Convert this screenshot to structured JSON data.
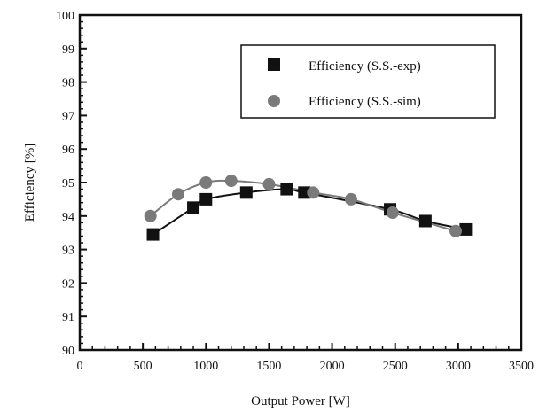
{
  "chart_data": {
    "type": "line",
    "title": "",
    "xlabel": "Output Power [W]",
    "ylabel": "Efficiency [%]",
    "xlim": [
      0,
      3500
    ],
    "ylim": [
      90,
      100
    ],
    "xticks": [
      "0",
      "500",
      "1000",
      "1500",
      "2000",
      "2500",
      "3000",
      "3500"
    ],
    "yticks": [
      "90",
      "91",
      "92",
      "93",
      "94",
      "95",
      "96",
      "97",
      "98",
      "99",
      "100"
    ],
    "grid": false,
    "legend_position": "top-right",
    "series": [
      {
        "name": "Efficiency (S.S.-exp)",
        "marker": "square",
        "color": "#111111",
        "x": [
          580,
          900,
          1000,
          1320,
          1640,
          1780,
          2460,
          2740,
          3060
        ],
        "y": [
          93.45,
          94.25,
          94.5,
          94.7,
          94.8,
          94.7,
          94.2,
          93.85,
          93.6
        ]
      },
      {
        "name": "Efficiency (S.S.-sim)",
        "marker": "circle",
        "color": "#7a7a7a",
        "x": [
          560,
          780,
          1000,
          1200,
          1500,
          1850,
          2150,
          2480,
          2980
        ],
        "y": [
          94.0,
          94.65,
          95.0,
          95.05,
          94.95,
          94.7,
          94.5,
          94.1,
          93.55
        ]
      }
    ]
  }
}
